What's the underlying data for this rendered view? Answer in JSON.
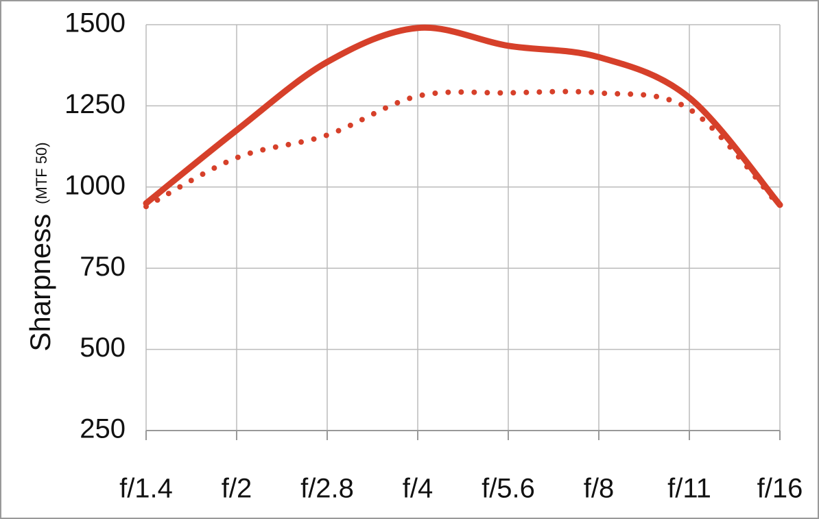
{
  "chart_data": {
    "type": "line",
    "y_label": "Sharpness",
    "y_label_unit": "(MTF 50)",
    "categories": [
      "f/1.4",
      "f/2",
      "f/2.8",
      "f/4",
      "f/5.6",
      "f/8",
      "f/11",
      "f/16"
    ],
    "series": [
      {
        "color": "#d6402a",
        "style": "solid",
        "values": [
          950,
          1175,
          1385,
          1490,
          1435,
          1400,
          1275,
          945
        ]
      },
      {
        "color": "#d6402a",
        "style": "dotted",
        "values": [
          940,
          1090,
          1160,
          1280,
          1290,
          1290,
          1240,
          940
        ]
      }
    ],
    "ylim": [
      250,
      1500
    ],
    "yticks": [
      250,
      500,
      750,
      1000,
      1250,
      1500
    ],
    "grid": true
  }
}
